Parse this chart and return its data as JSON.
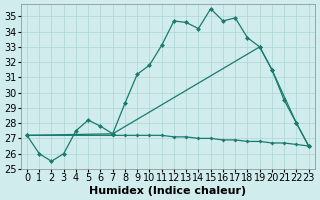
{
  "xlabel": "Humidex (Indice chaleur)",
  "xlim": [
    -0.5,
    23.5
  ],
  "ylim": [
    25,
    35.8
  ],
  "yticks": [
    25,
    26,
    27,
    28,
    29,
    30,
    31,
    32,
    33,
    34,
    35
  ],
  "xticks": [
    0,
    1,
    2,
    3,
    4,
    5,
    6,
    7,
    8,
    9,
    10,
    11,
    12,
    13,
    14,
    15,
    16,
    17,
    18,
    19,
    20,
    21,
    22,
    23
  ],
  "line1_x": [
    0,
    1,
    2,
    3,
    4,
    5,
    6,
    7,
    8,
    9,
    10,
    11,
    12,
    13,
    14,
    15,
    16,
    17,
    18,
    19,
    20,
    21,
    22,
    23
  ],
  "line1_y": [
    27.2,
    26.0,
    25.5,
    26.0,
    27.5,
    28.2,
    27.8,
    27.3,
    29.3,
    31.2,
    31.8,
    33.1,
    34.7,
    34.6,
    34.2,
    35.5,
    34.7,
    34.9,
    33.6,
    33.0,
    31.5,
    29.5,
    28.0,
    26.5
  ],
  "line2_x": [
    0,
    7,
    19,
    20,
    22,
    23
  ],
  "line2_y": [
    27.2,
    27.3,
    33.0,
    31.5,
    28.0,
    26.5
  ],
  "line3_x": [
    0,
    7,
    8,
    9,
    10,
    11,
    12,
    13,
    14,
    15,
    16,
    17,
    18,
    19,
    20,
    21,
    22,
    23
  ],
  "line3_y": [
    27.2,
    27.2,
    27.2,
    27.2,
    27.2,
    27.2,
    27.1,
    27.1,
    27.0,
    27.0,
    26.9,
    26.9,
    26.8,
    26.8,
    26.7,
    26.7,
    26.6,
    26.5
  ],
  "color": "#1a7a6e",
  "bg_color": "#d0ecec",
  "grid_color": "#aed4d4",
  "tick_fontsize": 7,
  "label_fontsize": 8
}
